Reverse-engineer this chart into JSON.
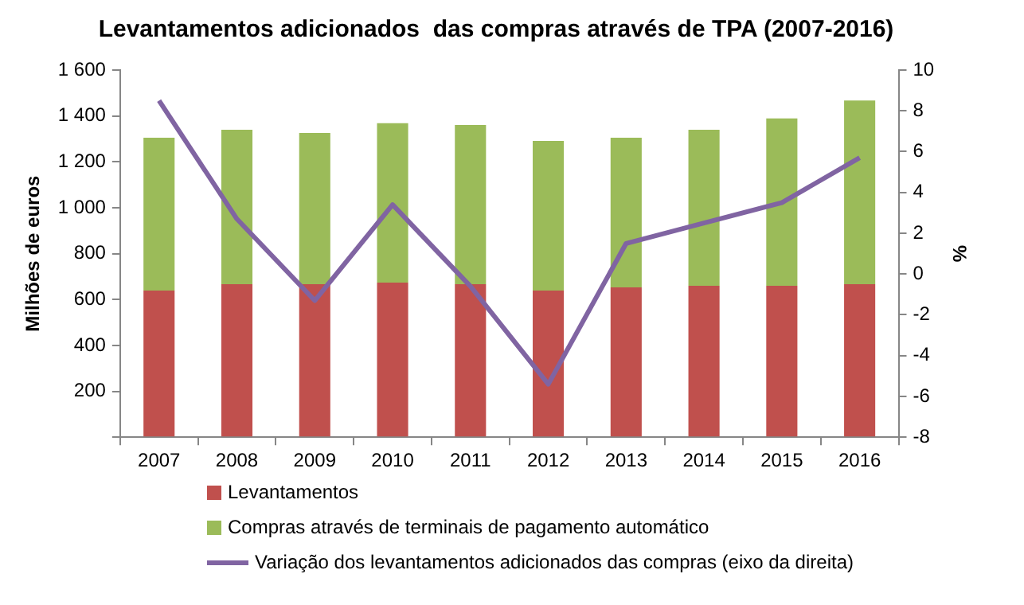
{
  "chart_data": {
    "type": "bar",
    "title": "Levantamentos adicionados  das compras através de TPA (2007-2016)",
    "ylabel": "Milhões de euros",
    "y2label": "%",
    "categories": [
      "2007",
      "2008",
      "2009",
      "2010",
      "2011",
      "2012",
      "2013",
      "2014",
      "2015",
      "2016"
    ],
    "stacked": true,
    "legend": "bottom",
    "series": [
      {
        "name": "Levantamentos",
        "color": "#c0504d",
        "values": [
          639,
          667,
          667,
          674,
          667,
          639,
          653,
          660,
          660,
          667
        ]
      },
      {
        "name": "Compras através de terminais de pagamento automático",
        "color": "#9bbb59",
        "values": [
          666,
          673,
          659,
          694,
          694,
          652,
          652,
          680,
          729,
          800
        ]
      },
      {
        "name": "Variação dos levantamentos adicionados das compras (eixo da direita)",
        "type": "line",
        "axis": "y2",
        "color": "#8064a2",
        "values": [
          8.5,
          2.7,
          -1.3,
          3.4,
          -0.6,
          -5.4,
          1.5,
          2.5,
          3.5,
          5.7
        ]
      }
    ],
    "ylim": [
      0,
      1600
    ],
    "yticks": [
      {
        "value": 0,
        "label": null
      },
      200,
      400,
      600,
      800,
      {
        "value": 1000,
        "label": "1 000"
      },
      {
        "value": 1200,
        "label": "1 200"
      },
      {
        "value": 1400,
        "label": "1 400"
      },
      {
        "value": 1600,
        "label": "1 600"
      }
    ],
    "y2lim": [
      -8,
      10
    ],
    "y2ticks": [
      -8,
      -6,
      -4,
      -2,
      0,
      2,
      4,
      6,
      8,
      10
    ]
  }
}
